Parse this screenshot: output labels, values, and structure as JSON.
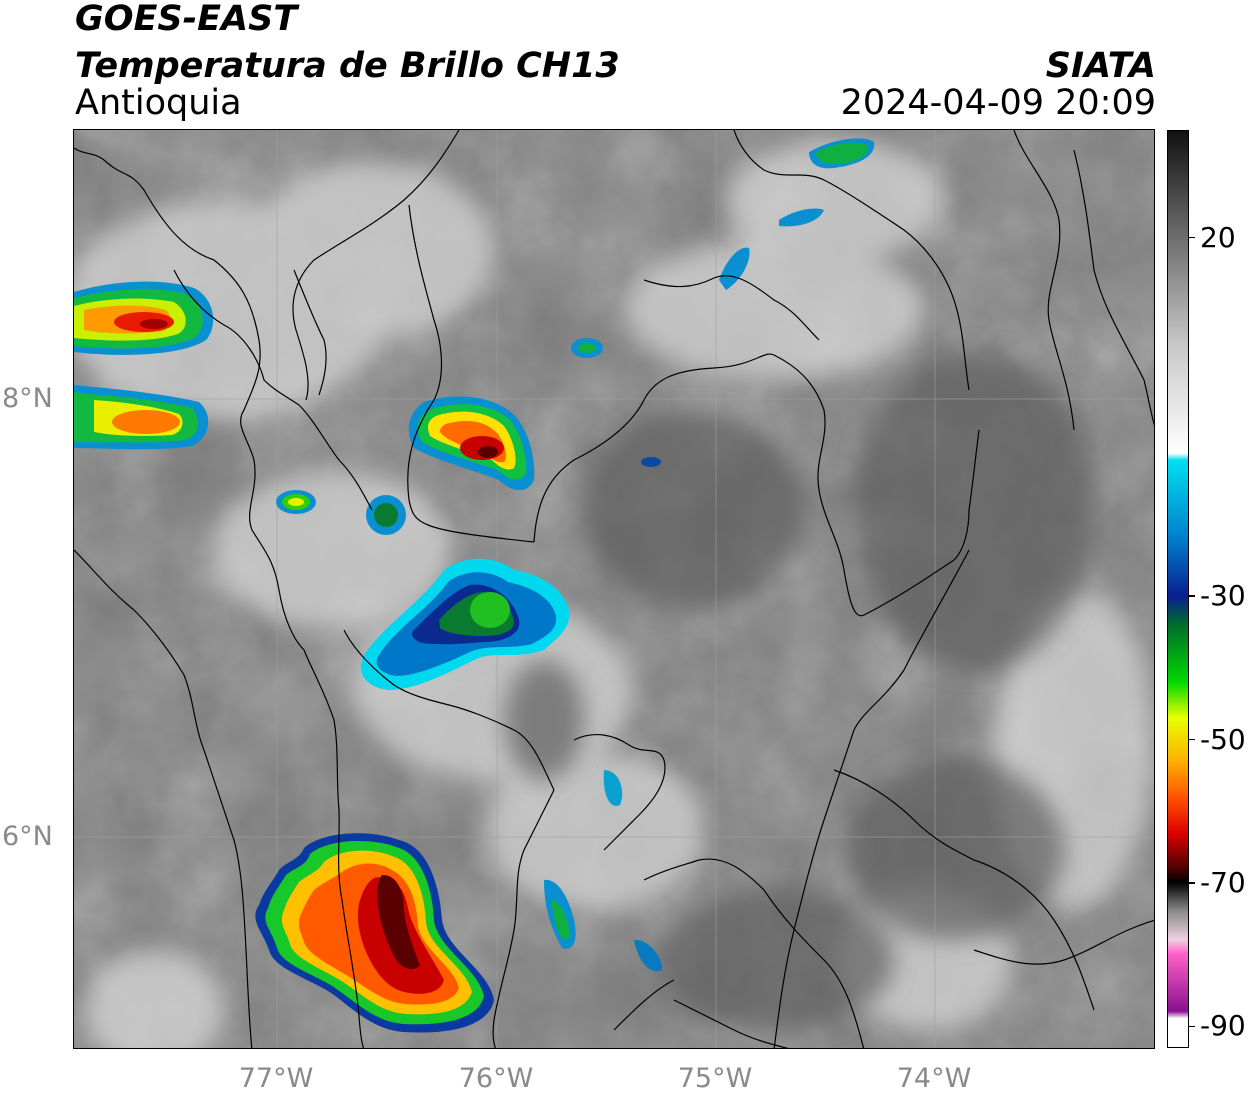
{
  "header": {
    "satellite": "GOES-EAST",
    "product": "Temperatura de Brillo CH13",
    "region": "Antioquia",
    "agency": "SIATA",
    "datetime": "2024-04-09 20:09"
  },
  "map": {
    "lat_ticks": [
      {
        "value": 8,
        "label": "8°N"
      },
      {
        "value": 6,
        "label": "6°N"
      }
    ],
    "lon_ticks": [
      {
        "value": -77,
        "label": "77°W"
      },
      {
        "value": -76,
        "label": "76°W"
      },
      {
        "value": -75,
        "label": "75°W"
      },
      {
        "value": -74,
        "label": "74°W"
      }
    ],
    "extent": {
      "lon_min": -77.91,
      "lon_max": -72.98,
      "lat_min": 4.93,
      "lat_max": 9.13
    },
    "gridlines": true
  },
  "colorbar": {
    "ticks": [
      {
        "value": 20,
        "label": "20"
      },
      {
        "value": -30,
        "label": "-30"
      },
      {
        "value": -50,
        "label": "-50"
      },
      {
        "value": -70,
        "label": "-70"
      },
      {
        "value": -90,
        "label": "-90"
      }
    ],
    "stops": [
      {
        "value": 35,
        "color": "#111111"
      },
      {
        "value": 20,
        "color": "#6e6e6e"
      },
      {
        "value": 5,
        "color": "#c8c8c8"
      },
      {
        "value": -10,
        "color": "#ffffff"
      },
      {
        "value": -11,
        "color": "#00e0f0"
      },
      {
        "value": -22,
        "color": "#007ecc"
      },
      {
        "value": -30,
        "color": "#0a1f8f"
      },
      {
        "value": -34,
        "color": "#006e2a"
      },
      {
        "value": -42,
        "color": "#00d800"
      },
      {
        "value": -47,
        "color": "#e8ff00"
      },
      {
        "value": -53,
        "color": "#ffb000"
      },
      {
        "value": -58,
        "color": "#ff5500"
      },
      {
        "value": -63,
        "color": "#e00000"
      },
      {
        "value": -68,
        "color": "#500000"
      },
      {
        "value": -70,
        "color": "#000000"
      },
      {
        "value": -74,
        "color": "#8a8a8a"
      },
      {
        "value": -78,
        "color": "#f0d0e0"
      },
      {
        "value": -80,
        "color": "#ff60c8"
      },
      {
        "value": -88,
        "color": "#8a1090"
      },
      {
        "value": -89,
        "color": "#ffffff"
      }
    ]
  }
}
